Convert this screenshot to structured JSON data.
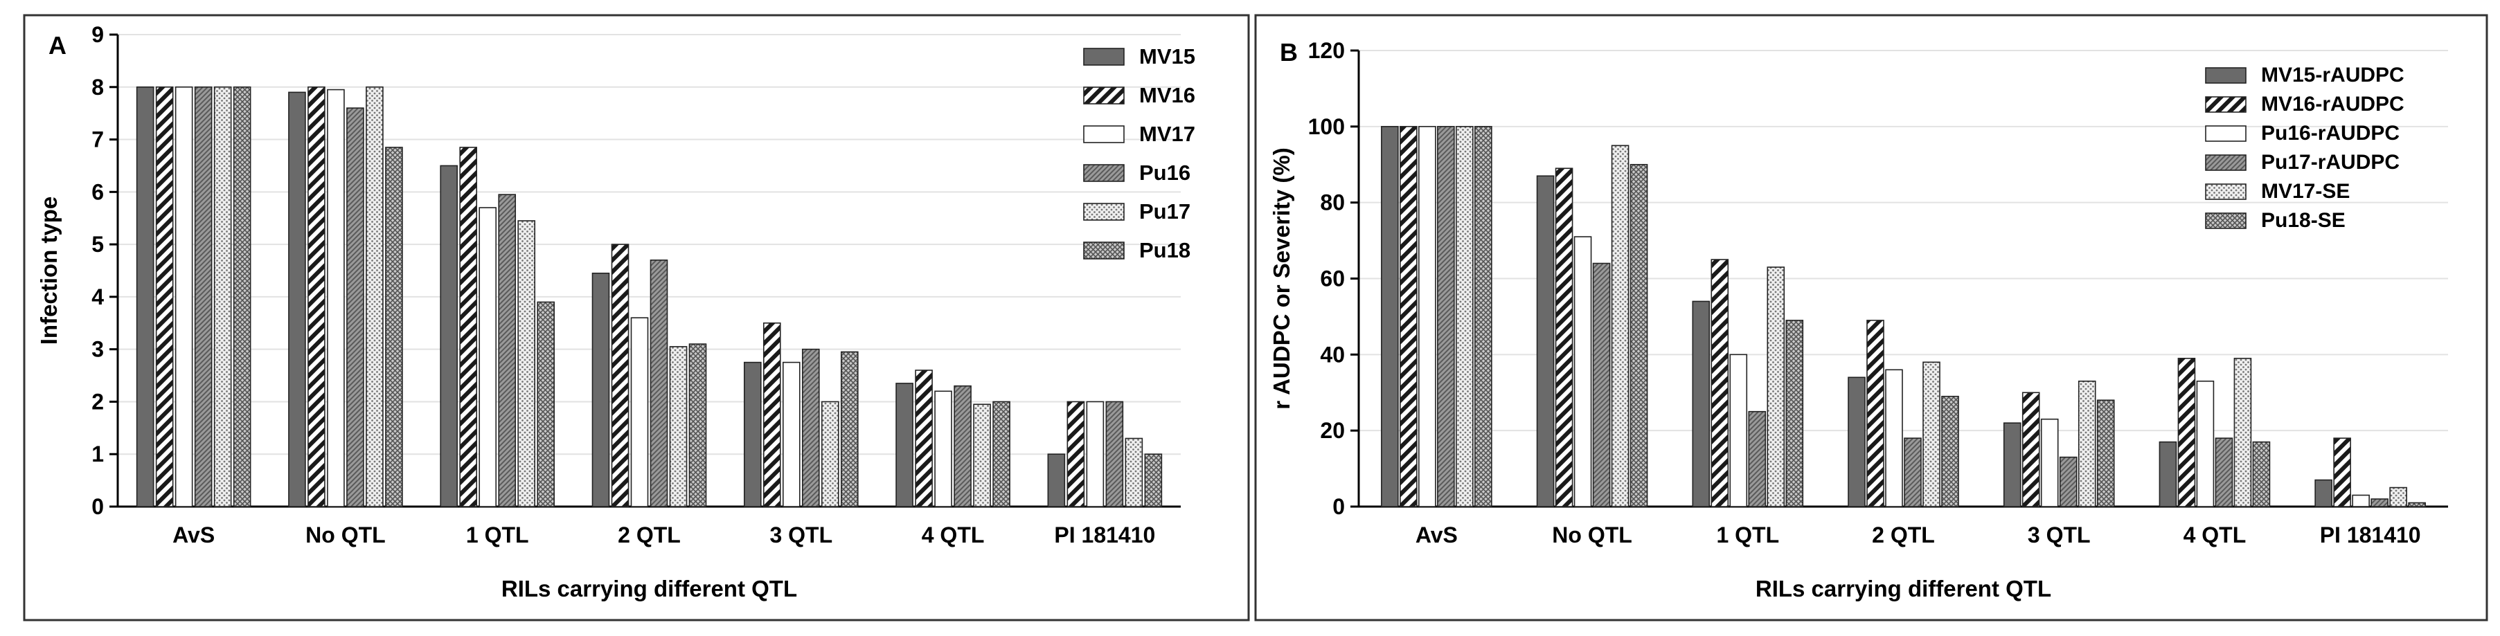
{
  "chart_data": [
    {
      "type": "bar",
      "panel_label": "A",
      "title": "",
      "xlabel": "RILs carrying different QTL",
      "ylabel": "Infection type",
      "ylim": [
        0,
        9
      ],
      "yticks": [
        "0",
        "1",
        "2",
        "3",
        "4",
        "5",
        "6",
        "7",
        "8",
        "9"
      ],
      "grid": true,
      "legend_position": "top-right",
      "categories": [
        "AvS",
        "No QTL",
        "1 QTL",
        "2 QTL",
        "3 QTL",
        "4 QTL",
        "PI 181410"
      ],
      "series": [
        {
          "name": "MV15",
          "pattern": "solid-gray",
          "values": [
            8,
            7.9,
            6.5,
            4.45,
            2.75,
            2.35,
            1.0
          ]
        },
        {
          "name": "MV16",
          "pattern": "diagonal",
          "values": [
            8,
            8.0,
            6.85,
            5.0,
            3.5,
            2.6,
            2.0
          ]
        },
        {
          "name": "MV17",
          "pattern": "white",
          "values": [
            8,
            7.95,
            5.7,
            3.6,
            2.75,
            2.2,
            2.0
          ]
        },
        {
          "name": "Pu16",
          "pattern": "fine-diagonal",
          "values": [
            8,
            7.6,
            5.95,
            4.7,
            3.0,
            2.3,
            2.0
          ]
        },
        {
          "name": "Pu17",
          "pattern": "dots",
          "values": [
            8,
            8.0,
            5.45,
            3.05,
            2.0,
            1.95,
            1.3
          ]
        },
        {
          "name": "Pu18",
          "pattern": "cross",
          "values": [
            8,
            6.85,
            3.9,
            3.1,
            2.95,
            2.0,
            1.0
          ]
        }
      ]
    },
    {
      "type": "bar",
      "panel_label": "B",
      "title": "",
      "xlabel": "RILs carrying different QTL",
      "ylabel": "r AUDPC or Severity (%)",
      "ylim": [
        0,
        120
      ],
      "yticks": [
        "0",
        "20",
        "40",
        "60",
        "80",
        "100",
        "120"
      ],
      "grid": true,
      "legend_position": "top-right",
      "categories": [
        "AvS",
        "No QTL",
        "1 QTL",
        "2 QTL",
        "3 QTL",
        "4 QTL",
        "PI 181410"
      ],
      "series": [
        {
          "name": "MV15-rAUDPC",
          "pattern": "solid-gray",
          "values": [
            100,
            87,
            54,
            34,
            22,
            17,
            7
          ]
        },
        {
          "name": "MV16-rAUDPC",
          "pattern": "diagonal",
          "values": [
            100,
            89,
            65,
            49,
            30,
            39,
            18
          ]
        },
        {
          "name": "Pu16-rAUDPC",
          "pattern": "white",
          "values": [
            100,
            71,
            40,
            36,
            23,
            33,
            3
          ]
        },
        {
          "name": "Pu17-rAUDPC",
          "pattern": "fine-diagonal",
          "values": [
            100,
            64,
            25,
            18,
            13,
            18,
            2
          ]
        },
        {
          "name": "MV17-SE",
          "pattern": "dots",
          "values": [
            100,
            95,
            63,
            38,
            33,
            39,
            5
          ]
        },
        {
          "name": "Pu18-SE",
          "pattern": "cross",
          "values": [
            100,
            90,
            49,
            29,
            28,
            17,
            1
          ]
        }
      ]
    }
  ]
}
